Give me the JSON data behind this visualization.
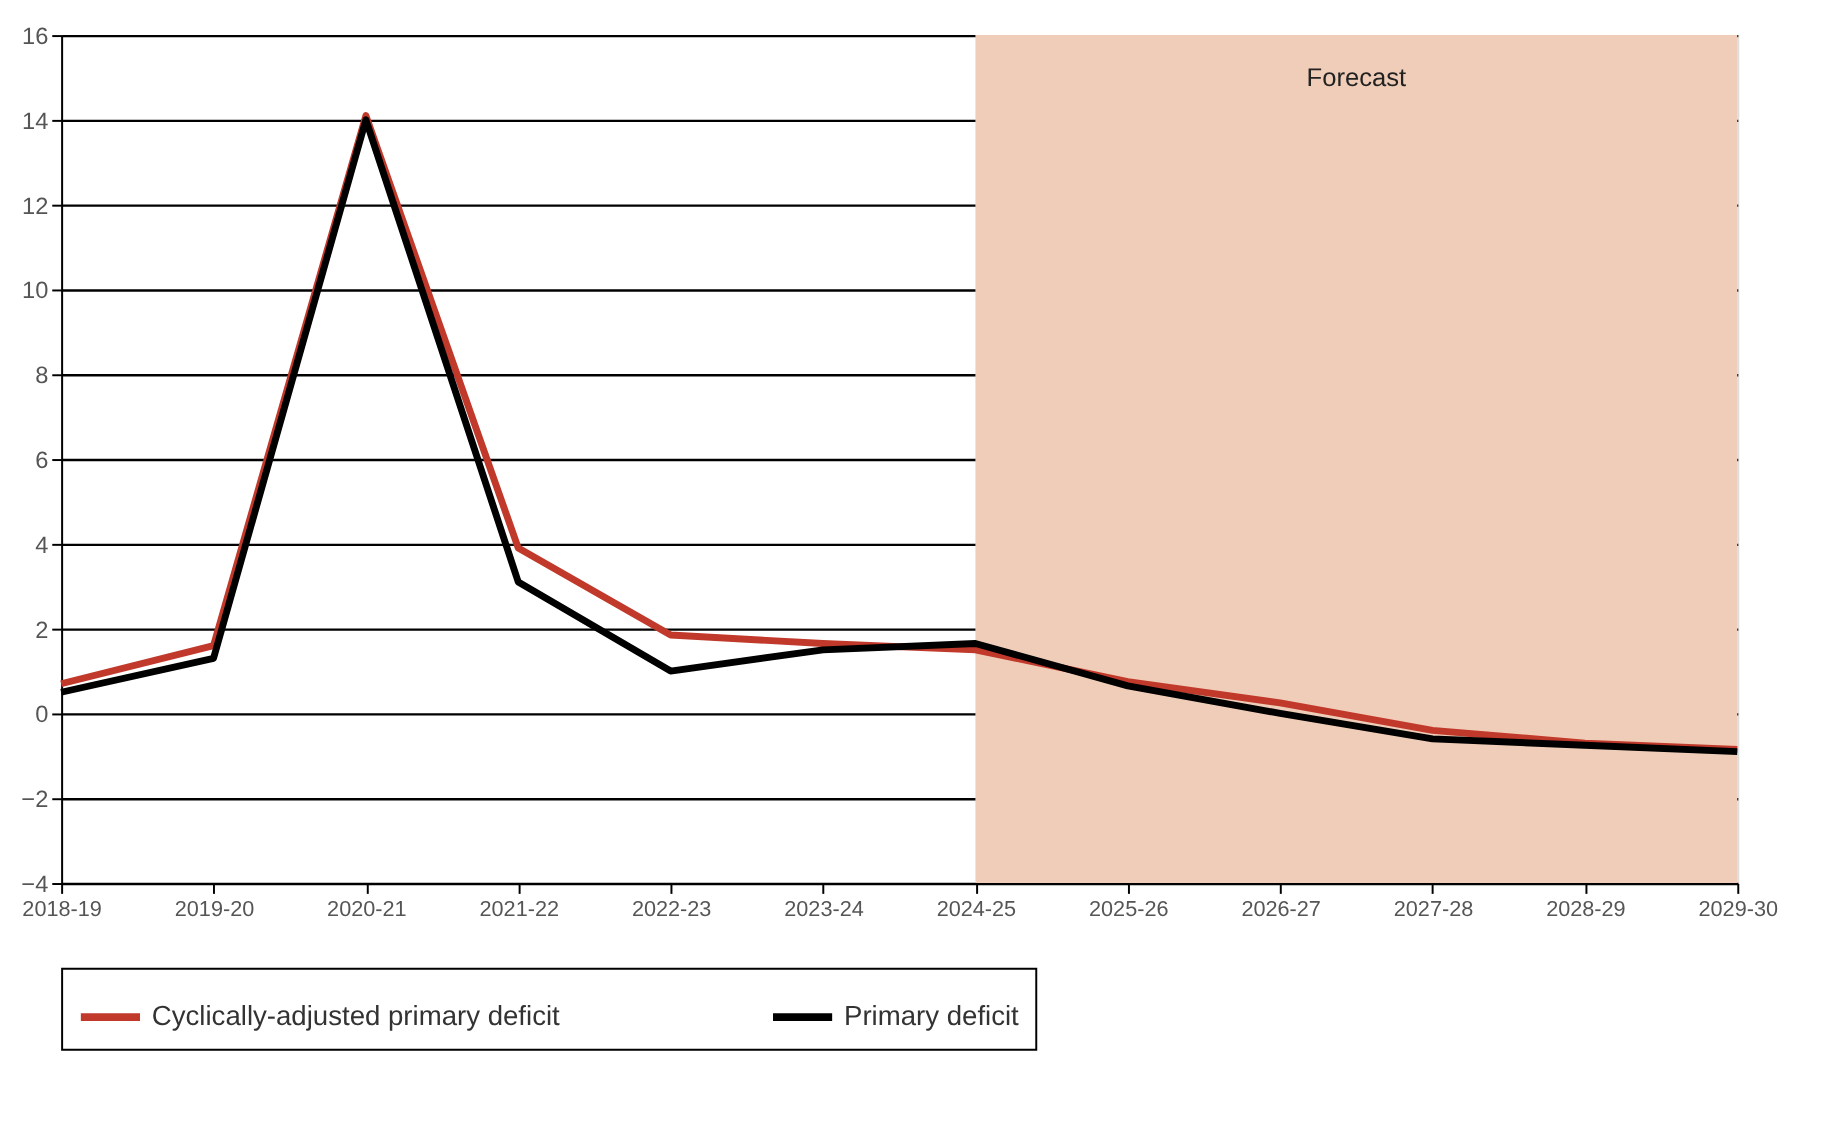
{
  "chart_data": {
    "type": "line",
    "categories": [
      "2018-19",
      "2019-20",
      "2020-21",
      "2021-22",
      "2022-23",
      "2023-24",
      "2024-25",
      "2025-26",
      "2026-27",
      "2027-28",
      "2028-29",
      "2029-30"
    ],
    "series": [
      {
        "name": "Cyclically-adjusted primary deficit",
        "color": "#c0392b",
        "values": [
          0.7,
          1.6,
          14.1,
          3.9,
          1.85,
          1.65,
          1.5,
          0.75,
          0.25,
          -0.4,
          -0.7,
          -0.85
        ]
      },
      {
        "name": "Primary deficit",
        "color": "#000000",
        "values": [
          0.5,
          1.3,
          14.0,
          3.1,
          1.0,
          1.5,
          1.65,
          0.65,
          0.0,
          -0.6,
          -0.75,
          -0.9
        ]
      }
    ],
    "ylim": [
      -4,
      16
    ],
    "yticks": [
      -4,
      -2,
      0,
      2,
      4,
      6,
      8,
      10,
      12,
      14,
      16
    ],
    "bands": [
      {
        "axis": "x",
        "from": "2024-25",
        "to": "2029-30",
        "label": "Forecast",
        "color": "#f0cdb8"
      }
    ],
    "grid": "y",
    "legend": "bottom",
    "marker": "none",
    "line_style": "solid"
  }
}
